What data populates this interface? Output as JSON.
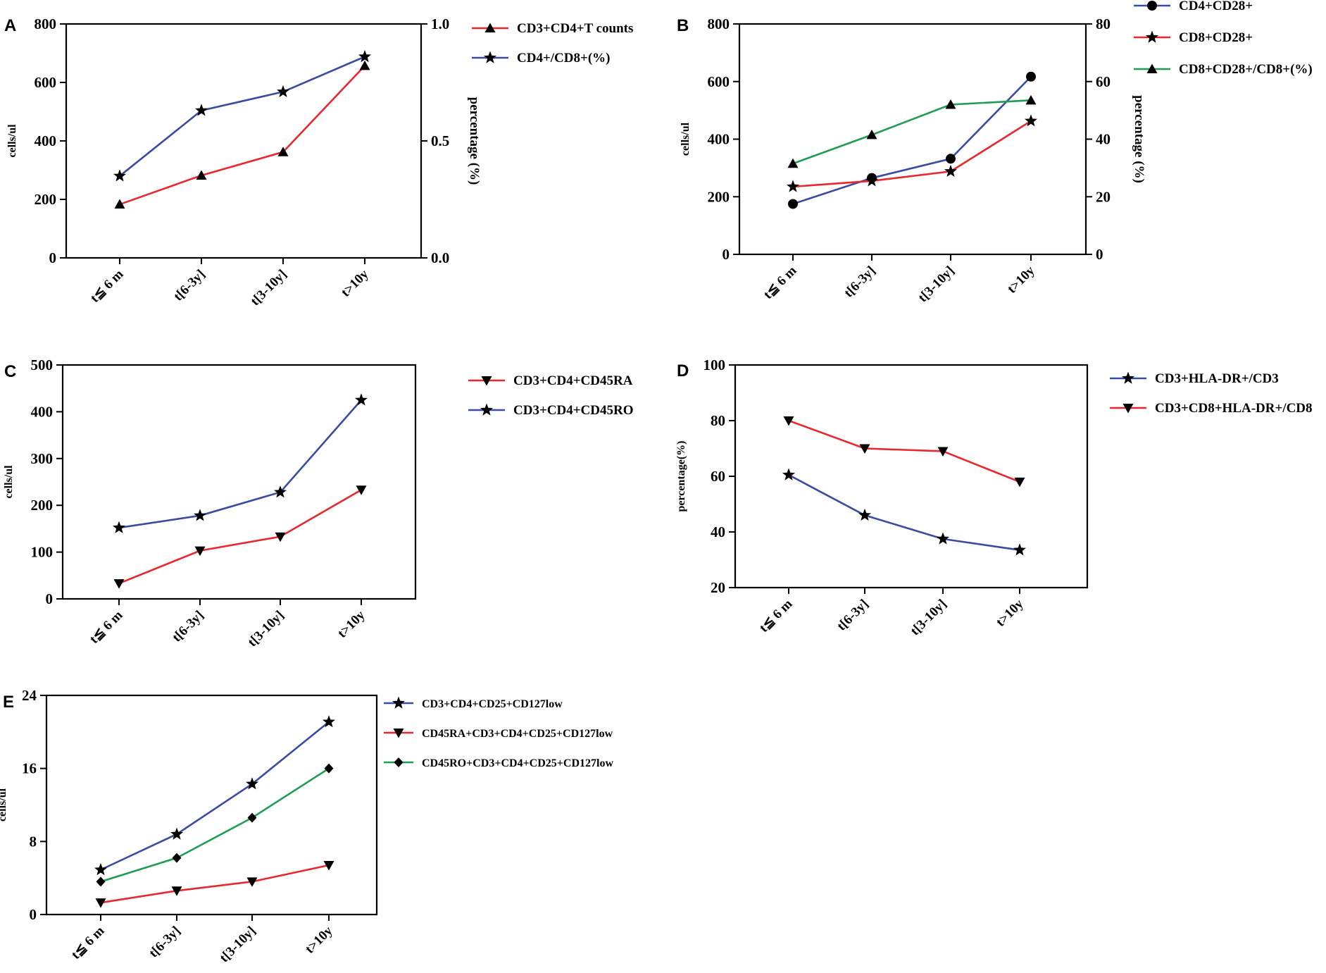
{
  "figure": {
    "panels": [
      "A",
      "B",
      "C",
      "D",
      "E"
    ]
  },
  "colors": {
    "red": "#e8282d",
    "blue": "#3b4ba3",
    "green": "#1f9c55",
    "black": "#000000"
  },
  "chart_data": [
    {
      "panel": "A",
      "type": "line",
      "categories": [
        "t≦ 6 m",
        "t[6-3y]",
        "t[3-10y]",
        "t>10y"
      ],
      "ylabel": "cells/ul",
      "y2label": "percentage (%)",
      "ylim": [
        0,
        800
      ],
      "yticks": [
        0,
        200,
        400,
        600,
        800
      ],
      "y2lim": [
        0,
        1.0
      ],
      "y2ticks": [
        "0.0",
        "0.5",
        "1.0"
      ],
      "grid": false,
      "series": [
        {
          "name": "CD3+CD4+T counts",
          "axis": "left",
          "color": "red",
          "marker": "triangle-up",
          "values": [
            183,
            282,
            362,
            657
          ]
        },
        {
          "name": "CD4+/CD8+(%)",
          "axis": "right",
          "color": "blue",
          "marker": "star",
          "values": [
            0.35,
            0.63,
            0.71,
            0.86
          ]
        }
      ]
    },
    {
      "panel": "B",
      "type": "line",
      "categories": [
        "t≦ 6 m",
        "t[6-3y]",
        "t[3-10y]",
        "t>10y"
      ],
      "ylabel": "cells/ul",
      "y2label": "percentage (%)",
      "ylim": [
        0,
        800
      ],
      "yticks": [
        0,
        200,
        400,
        600,
        800
      ],
      "y2lim": [
        0,
        80
      ],
      "y2ticks": [
        "0",
        "20",
        "40",
        "60",
        "80"
      ],
      "grid": false,
      "series": [
        {
          "name": "CD4+CD28+",
          "axis": "left",
          "color": "blue",
          "marker": "circle",
          "values": [
            175,
            265,
            332,
            617
          ]
        },
        {
          "name": "CD8+CD28+",
          "axis": "left",
          "color": "red",
          "marker": "star",
          "values": [
            235,
            255,
            288,
            463
          ]
        },
        {
          "name": "CD8+CD28+/CD8+(%)",
          "axis": "right",
          "color": "green",
          "marker": "triangle-up",
          "values": [
            31.5,
            41.5,
            52,
            53.5
          ]
        }
      ]
    },
    {
      "panel": "C",
      "type": "line",
      "categories": [
        "t≦ 6 m",
        "t[6-3y]",
        "t[3-10y]",
        "t>10y"
      ],
      "ylabel": "cells/ul",
      "ylim": [
        0,
        500
      ],
      "yticks": [
        0,
        100,
        200,
        300,
        400,
        500
      ],
      "grid": false,
      "series": [
        {
          "name": "CD3+CD4+CD45RA",
          "axis": "left",
          "color": "red",
          "marker": "triangle-down",
          "values": [
            33,
            103,
            133,
            233
          ]
        },
        {
          "name": "CD3+CD4+CD45RO",
          "axis": "left",
          "color": "blue",
          "marker": "star",
          "values": [
            152,
            178,
            228,
            425
          ]
        }
      ]
    },
    {
      "panel": "D",
      "type": "line",
      "categories": [
        "t≦ 6 m",
        "t[6-3y]",
        "t[3-10y]",
        "t>10y"
      ],
      "ylabel": "percentage(%)",
      "ylim": [
        20,
        100
      ],
      "yticks": [
        20,
        40,
        60,
        80,
        100
      ],
      "grid": false,
      "series": [
        {
          "name": "CD3+HLA-DR+/CD3",
          "axis": "left",
          "color": "blue",
          "marker": "star",
          "values": [
            60.5,
            46,
            37.5,
            33.5
          ]
        },
        {
          "name": "CD3+CD8+HLA-DR+/CD8",
          "axis": "left",
          "color": "red",
          "marker": "triangle-down",
          "values": [
            80,
            70,
            69,
            58
          ]
        }
      ]
    },
    {
      "panel": "E",
      "type": "line",
      "categories": [
        "t≦ 6 m",
        "t[6-3y]",
        "t[3-10y]",
        "t>10y"
      ],
      "ylabel": "cells/ul",
      "ylim": [
        0,
        24
      ],
      "yticks": [
        0,
        8,
        16,
        24
      ],
      "grid": false,
      "series": [
        {
          "name": "CD3+CD4+CD25+CD127low",
          "axis": "left",
          "color": "blue",
          "marker": "star",
          "values": [
            4.9,
            8.8,
            14.3,
            21.1
          ]
        },
        {
          "name": "CD45RA+CD3+CD4+CD25+CD127low",
          "axis": "left",
          "color": "red",
          "marker": "triangle-down",
          "values": [
            1.3,
            2.6,
            3.6,
            5.4
          ]
        },
        {
          "name": "CD45RO+CD3+CD4+CD25+CD127low",
          "axis": "left",
          "color": "green",
          "marker": "diamond",
          "values": [
            3.6,
            6.2,
            10.6,
            16
          ]
        }
      ]
    }
  ]
}
